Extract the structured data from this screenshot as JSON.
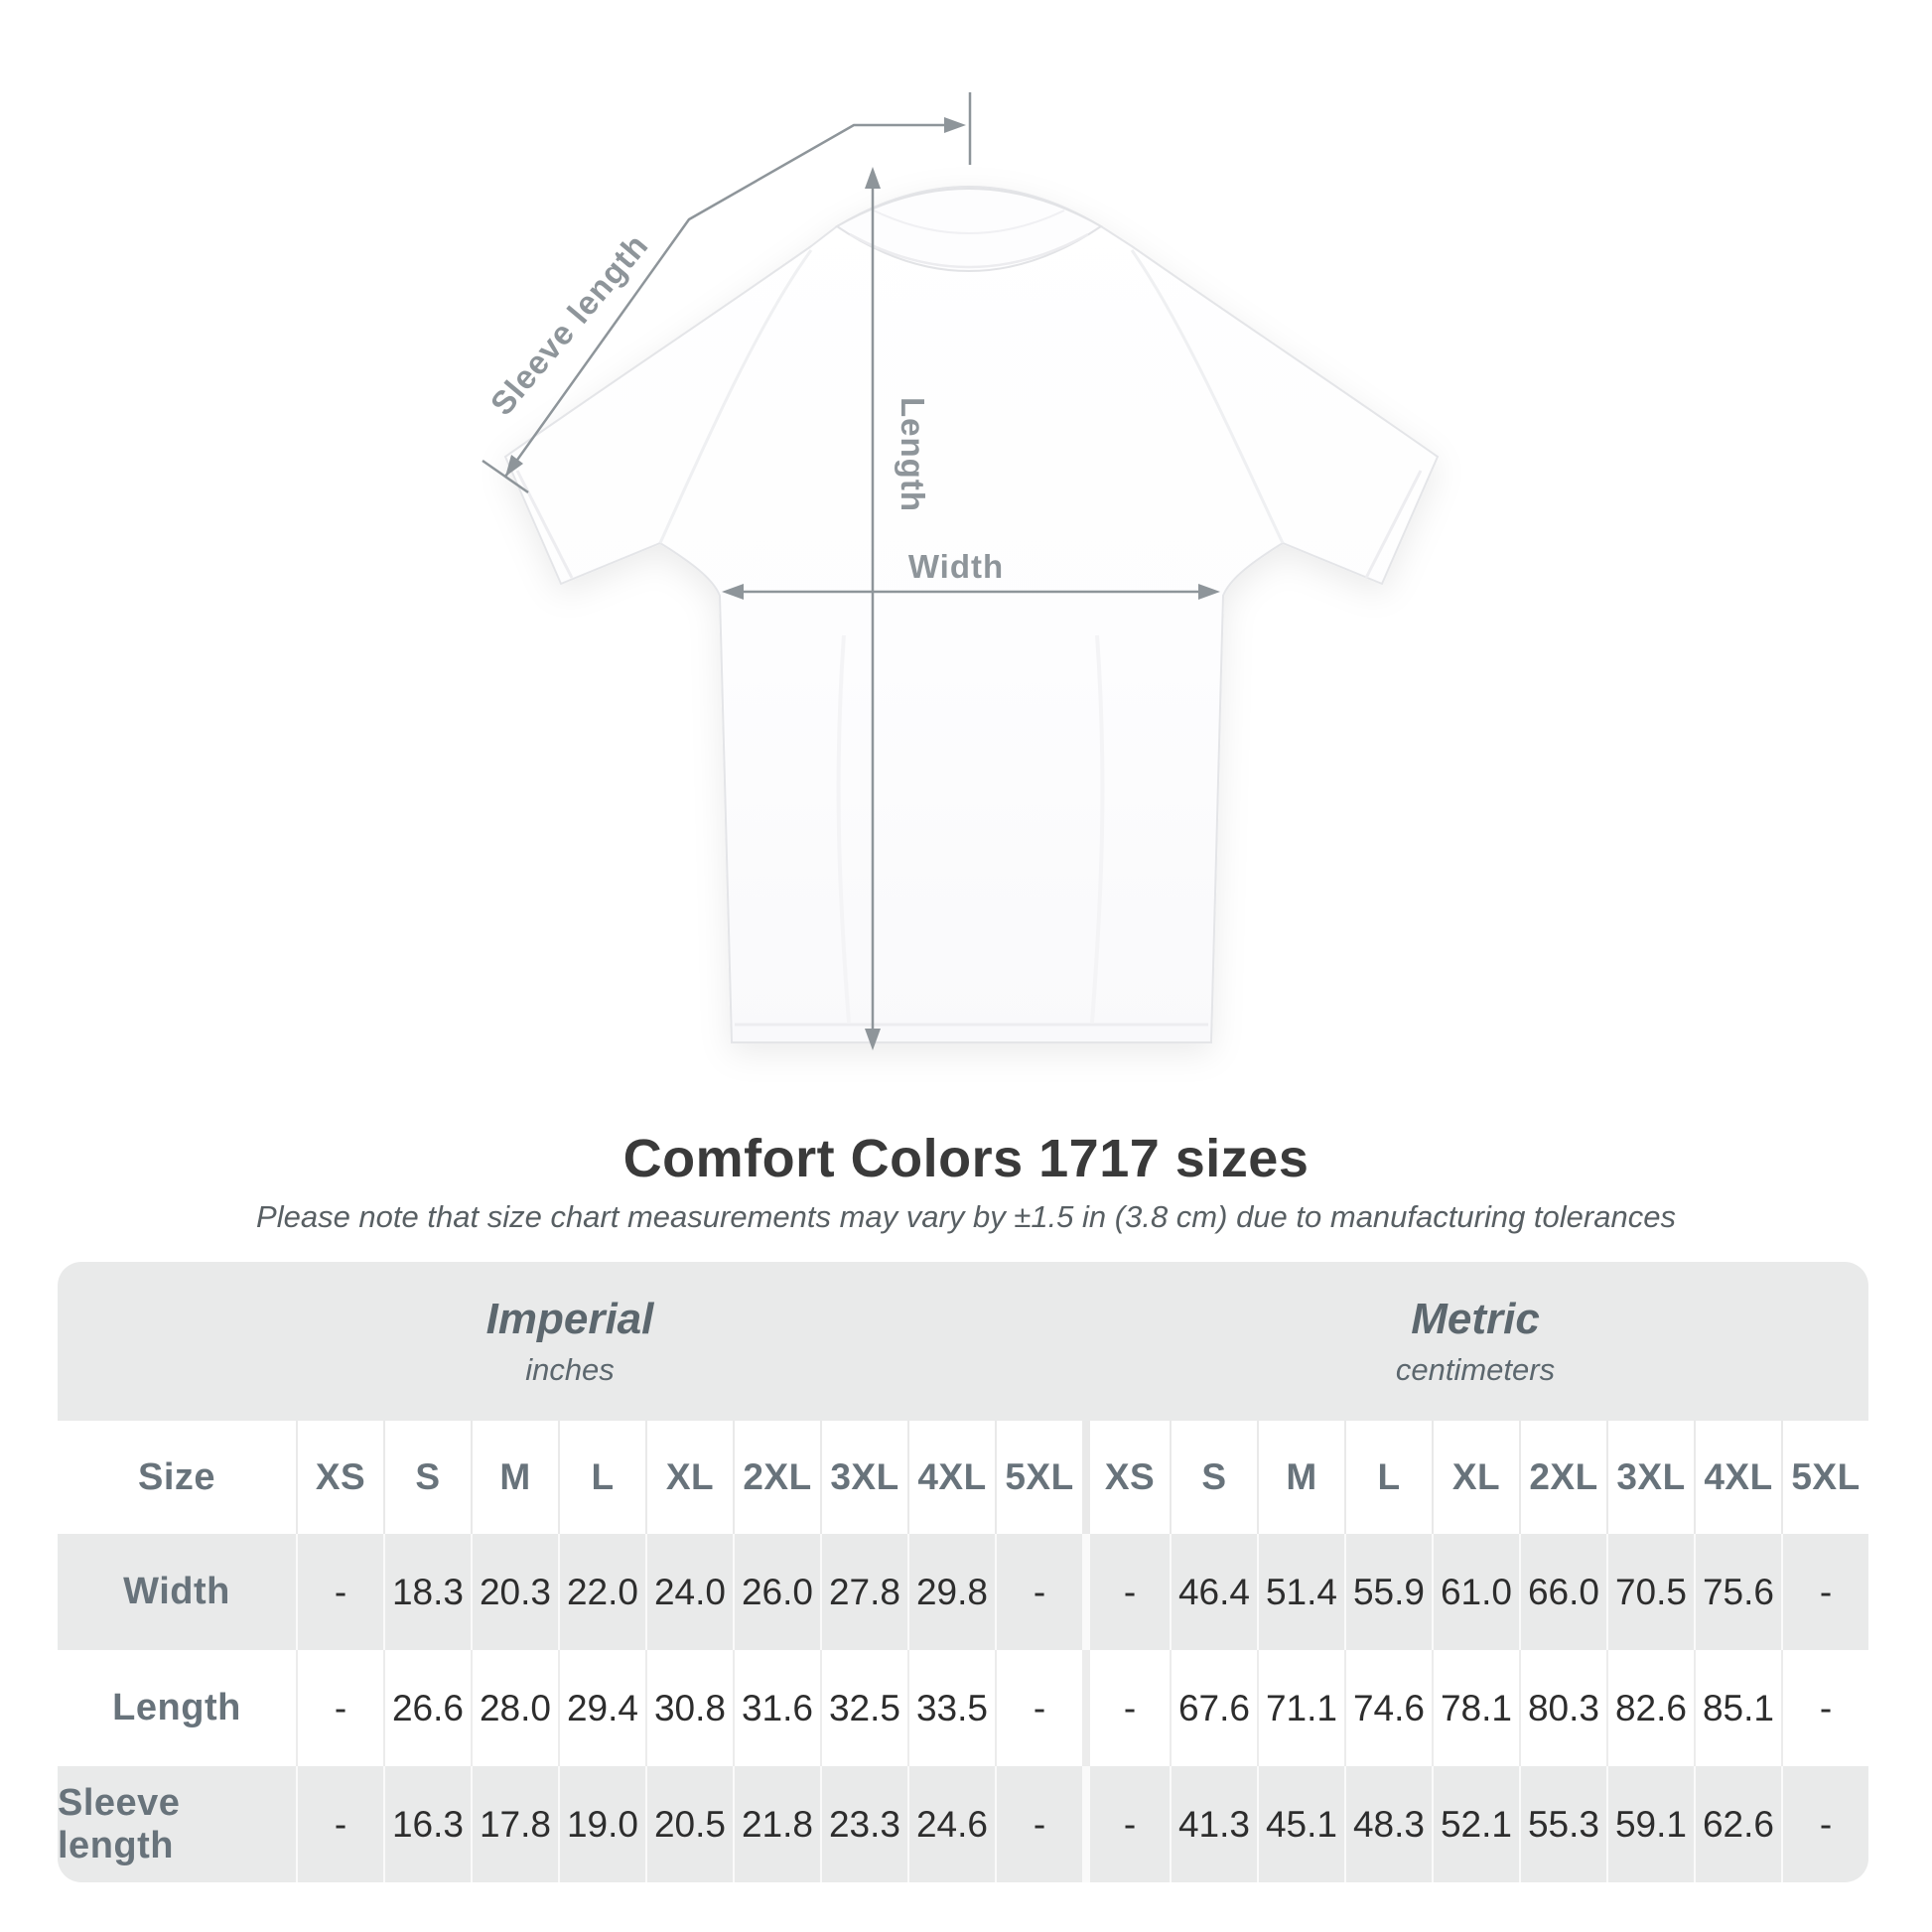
{
  "diagram": {
    "labels": {
      "sleeve_length": "Sleeve length",
      "length": "Length",
      "width": "Width"
    },
    "arrow_color": "#8e959a",
    "shirt_color": "#ffffff"
  },
  "title": "Comfort Colors 1717 sizes",
  "subtitle": "Please note that size chart measurements may vary by ±1.5 in (3.8 cm) due to manufacturing tolerances",
  "table": {
    "groups": [
      {
        "name": "Imperial",
        "unit": "inches"
      },
      {
        "name": "Metric",
        "unit": "centimeters"
      }
    ],
    "size_label": "Size",
    "sizes": [
      "XS",
      "S",
      "M",
      "L",
      "XL",
      "2XL",
      "3XL",
      "4XL",
      "5XL"
    ],
    "rows": [
      {
        "label": "Width",
        "imperial": [
          "-",
          "18.3",
          "20.3",
          "22.0",
          "24.0",
          "26.0",
          "27.8",
          "29.8",
          "-"
        ],
        "metric": [
          "-",
          "46.4",
          "51.4",
          "55.9",
          "61.0",
          "66.0",
          "70.5",
          "75.6",
          "-"
        ]
      },
      {
        "label": "Length",
        "imperial": [
          "-",
          "26.6",
          "28.0",
          "29.4",
          "30.8",
          "31.6",
          "32.5",
          "33.5",
          "-"
        ],
        "metric": [
          "-",
          "67.6",
          "71.1",
          "74.6",
          "78.1",
          "80.3",
          "82.6",
          "85.1",
          "-"
        ]
      },
      {
        "label": "Sleeve length",
        "imperial": [
          "-",
          "16.3",
          "17.8",
          "19.0",
          "20.5",
          "21.8",
          "23.3",
          "24.6",
          "-"
        ],
        "metric": [
          "-",
          "41.3",
          "45.1",
          "48.3",
          "52.1",
          "55.3",
          "59.1",
          "62.6",
          "-"
        ]
      }
    ]
  },
  "colors": {
    "band_gray": "#e9eaea",
    "zebra_gray": "#e9eaea",
    "header_text": "#68737b",
    "value_text": "#2d2d2d",
    "title_text": "#3a3a3a",
    "diagram_gray": "#8e959a"
  }
}
